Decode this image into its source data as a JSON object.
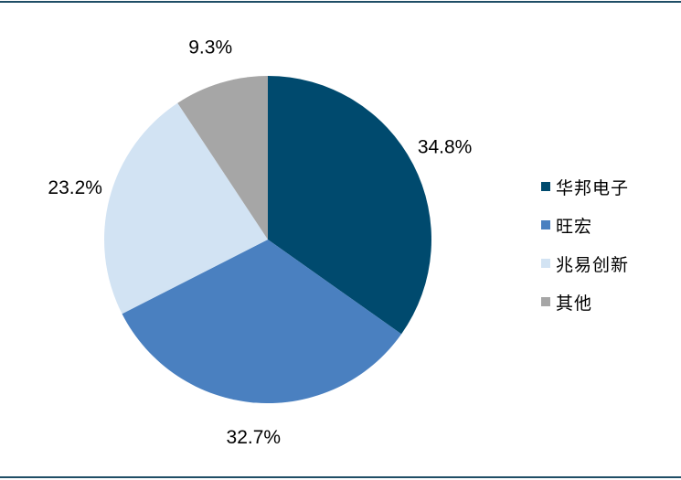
{
  "chart_data": {
    "type": "pie",
    "labels": [
      "华邦电子",
      "旺宏",
      "兆易创新",
      "其他"
    ],
    "values": [
      34.8,
      32.7,
      23.2,
      9.3
    ],
    "value_labels": [
      "34.8%",
      "32.7%",
      "23.2%",
      "9.3%"
    ],
    "colors": [
      "#004a6e",
      "#4a80c0",
      "#d2e3f3",
      "#a6a6a6"
    ],
    "start": "12 o'clock",
    "direction": "clockwise",
    "legend_position": "right"
  }
}
